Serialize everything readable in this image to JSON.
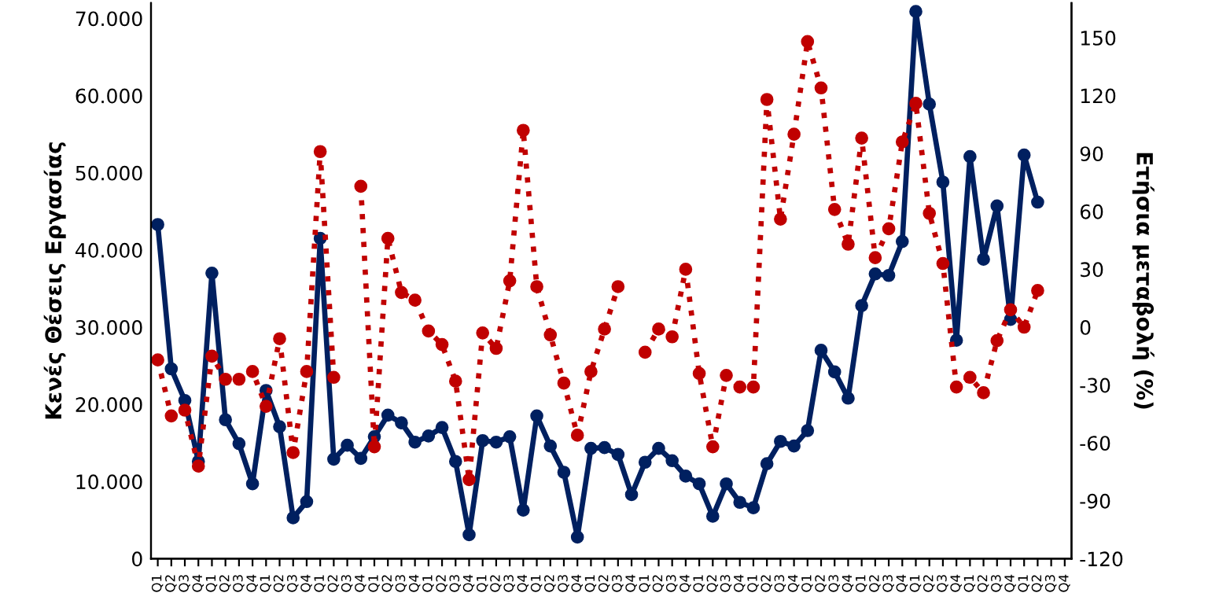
{
  "chart_data": {
    "type": "line",
    "ylabel": "Κενές Θέσεις Εργασίας",
    "y2label": "Ετήσια μεταβολή (%)",
    "categories": [
      "Q1",
      "Q2",
      "Q3",
      "Q4",
      "Q1",
      "Q2",
      "Q3",
      "Q4",
      "Q1",
      "Q2",
      "Q3",
      "Q4",
      "Q1",
      "Q2",
      "Q3",
      "Q4",
      "Q1",
      "Q2",
      "Q3",
      "Q4",
      "Q1",
      "Q2",
      "Q3",
      "Q4",
      "Q1",
      "Q2",
      "Q3",
      "Q4",
      "Q1",
      "Q2",
      "Q3",
      "Q4",
      "Q1",
      "Q2",
      "Q3",
      "Q4",
      "Q1",
      "Q2",
      "Q3",
      "Q4",
      "Q1",
      "Q2",
      "Q3",
      "Q4",
      "Q1",
      "Q2",
      "Q3",
      "Q4",
      "Q1",
      "Q2",
      "Q3",
      "Q4",
      "Q1",
      "Q2",
      "Q3",
      "Q4",
      "Q1",
      "Q2",
      "Q3",
      "Q4",
      "Q1",
      "Q2",
      "Q3",
      "Q4",
      "Q1",
      "Q2",
      "Q3",
      "Q4"
    ],
    "series": [
      {
        "color": "#002060",
        "line_style": "solid",
        "axis": "y",
        "values": [
          43300,
          24600,
          20500,
          12600,
          37000,
          18000,
          14900,
          9700,
          21800,
          17100,
          5300,
          7400,
          41500,
          12900,
          14700,
          13000,
          15800,
          18600,
          17600,
          15100,
          15900,
          17000,
          12600,
          3100,
          15300,
          15100,
          15800,
          6300,
          18500,
          14600,
          11200,
          2800,
          14300,
          14400,
          13500,
          8300,
          12500,
          14300,
          12700,
          10700,
          9700,
          5500,
          9700,
          7300,
          6600,
          12300,
          15200,
          14600,
          16600,
          27000,
          24200,
          20800,
          32800,
          36900,
          36700,
          41100,
          70900,
          58900,
          48800,
          28300,
          52100,
          38800,
          45700,
          31000,
          52300,
          46200,
          null,
          null
        ]
      },
      {
        "color": "#c00000",
        "line_style": "dotted",
        "axis": "y2",
        "values": [
          -17,
          -46,
          -43,
          -72,
          -15,
          -27,
          -27,
          -23,
          -41,
          -6,
          -65,
          -23,
          91,
          -26,
          null,
          73,
          -62,
          46,
          18,
          14,
          -2,
          -9,
          -28,
          -79,
          -3,
          -11,
          24,
          102,
          21,
          -4,
          -29,
          -56,
          -23,
          -1,
          21,
          null,
          -13,
          -1,
          -5,
          30,
          -24,
          -62,
          -25,
          -31,
          -31,
          118,
          56,
          100,
          148,
          124,
          61,
          43,
          98,
          36,
          51,
          96,
          116,
          59,
          33,
          -31,
          -26,
          -34,
          -7,
          9,
          0,
          19,
          null,
          null
        ]
      }
    ],
    "marker": "circle",
    "ylim": [
      0,
      72000
    ],
    "yticks": [
      0,
      {
        "value": 10000,
        "label": "10.000"
      },
      {
        "value": 20000,
        "label": "20.000"
      },
      {
        "value": 30000,
        "label": "30.000"
      },
      {
        "value": 40000,
        "label": "40.000"
      },
      {
        "value": 50000,
        "label": "50.000"
      },
      {
        "value": 60000,
        "label": "60.000"
      },
      {
        "value": 70000,
        "label": "70.000"
      }
    ],
    "y2lim": [
      -120,
      168
    ],
    "y2ticks": [
      -120,
      -90,
      -60,
      -30,
      0,
      30,
      60,
      90,
      120,
      150
    ],
    "grid": false,
    "legend": false
  }
}
